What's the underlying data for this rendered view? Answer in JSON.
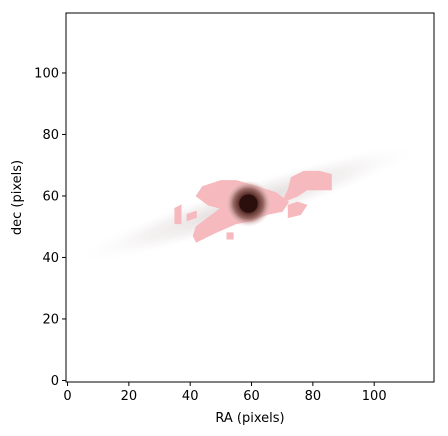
{
  "chart_data": {
    "type": "heatmap",
    "title": "",
    "xlabel": "RA (pixels)",
    "ylabel": "dec (pixels)",
    "xlim": [
      -0.5,
      119.5
    ],
    "ylim": [
      -0.5,
      119.5
    ],
    "xticks": [
      0,
      20,
      40,
      60,
      80,
      100
    ],
    "yticks": [
      0,
      20,
      40,
      60,
      80,
      100
    ],
    "xtick_labels": [
      "0",
      "20",
      "40",
      "60",
      "80",
      "100"
    ],
    "ytick_labels": [
      "0",
      "20",
      "40",
      "60",
      "80",
      "100"
    ],
    "grid": false,
    "colormap": "white-pink-dark-brown",
    "colors": {
      "mask_fill": "#f6b9bd",
      "halo": "#e9e6e6",
      "core_outer": "#c89a9a",
      "core_mid": "#8a5a55",
      "core_inner": "#2a0f0c"
    },
    "source": {
      "center": [
        59,
        57.5
      ],
      "core_radius": 4,
      "halo_position_angle_deg": 18,
      "halo_extent": [
        60,
        7
      ]
    },
    "mask_regions": [
      {
        "name": "main-arm",
        "polygon": [
          [
            42,
            45
          ],
          [
            48,
            48
          ],
          [
            55,
            51
          ],
          [
            60,
            52
          ],
          [
            65,
            54
          ],
          [
            70,
            55
          ],
          [
            72,
            58
          ],
          [
            68,
            61
          ],
          [
            62,
            63
          ],
          [
            55,
            65
          ],
          [
            50,
            65
          ],
          [
            44,
            63
          ],
          [
            42,
            60
          ],
          [
            46,
            57
          ],
          [
            50,
            56
          ],
          [
            46,
            53
          ],
          [
            42,
            50
          ],
          [
            41,
            47
          ]
        ]
      },
      {
        "name": "upper-right-blob",
        "polygon": [
          [
            70,
            58
          ],
          [
            75,
            60
          ],
          [
            78,
            62
          ],
          [
            86,
            62
          ],
          [
            86,
            67
          ],
          [
            82,
            68
          ],
          [
            77,
            68
          ],
          [
            73,
            66
          ],
          [
            72,
            62
          ]
        ]
      },
      {
        "name": "lower-right-patch",
        "polygon": [
          [
            72,
            53
          ],
          [
            76,
            54
          ],
          [
            78,
            57
          ],
          [
            75,
            58
          ],
          [
            72,
            57
          ]
        ]
      },
      {
        "name": "left-speck",
        "polygon": [
          [
            35,
            51
          ],
          [
            37,
            51
          ],
          [
            37,
            57
          ],
          [
            35,
            56
          ]
        ]
      },
      {
        "name": "left-mid-speck",
        "polygon": [
          [
            39,
            52
          ],
          [
            42,
            53
          ],
          [
            42,
            55
          ],
          [
            39,
            54
          ]
        ]
      },
      {
        "name": "lower-speck",
        "polygon": [
          [
            52,
            46
          ],
          [
            54,
            46
          ],
          [
            54,
            48
          ],
          [
            52,
            48
          ]
        ]
      }
    ]
  }
}
